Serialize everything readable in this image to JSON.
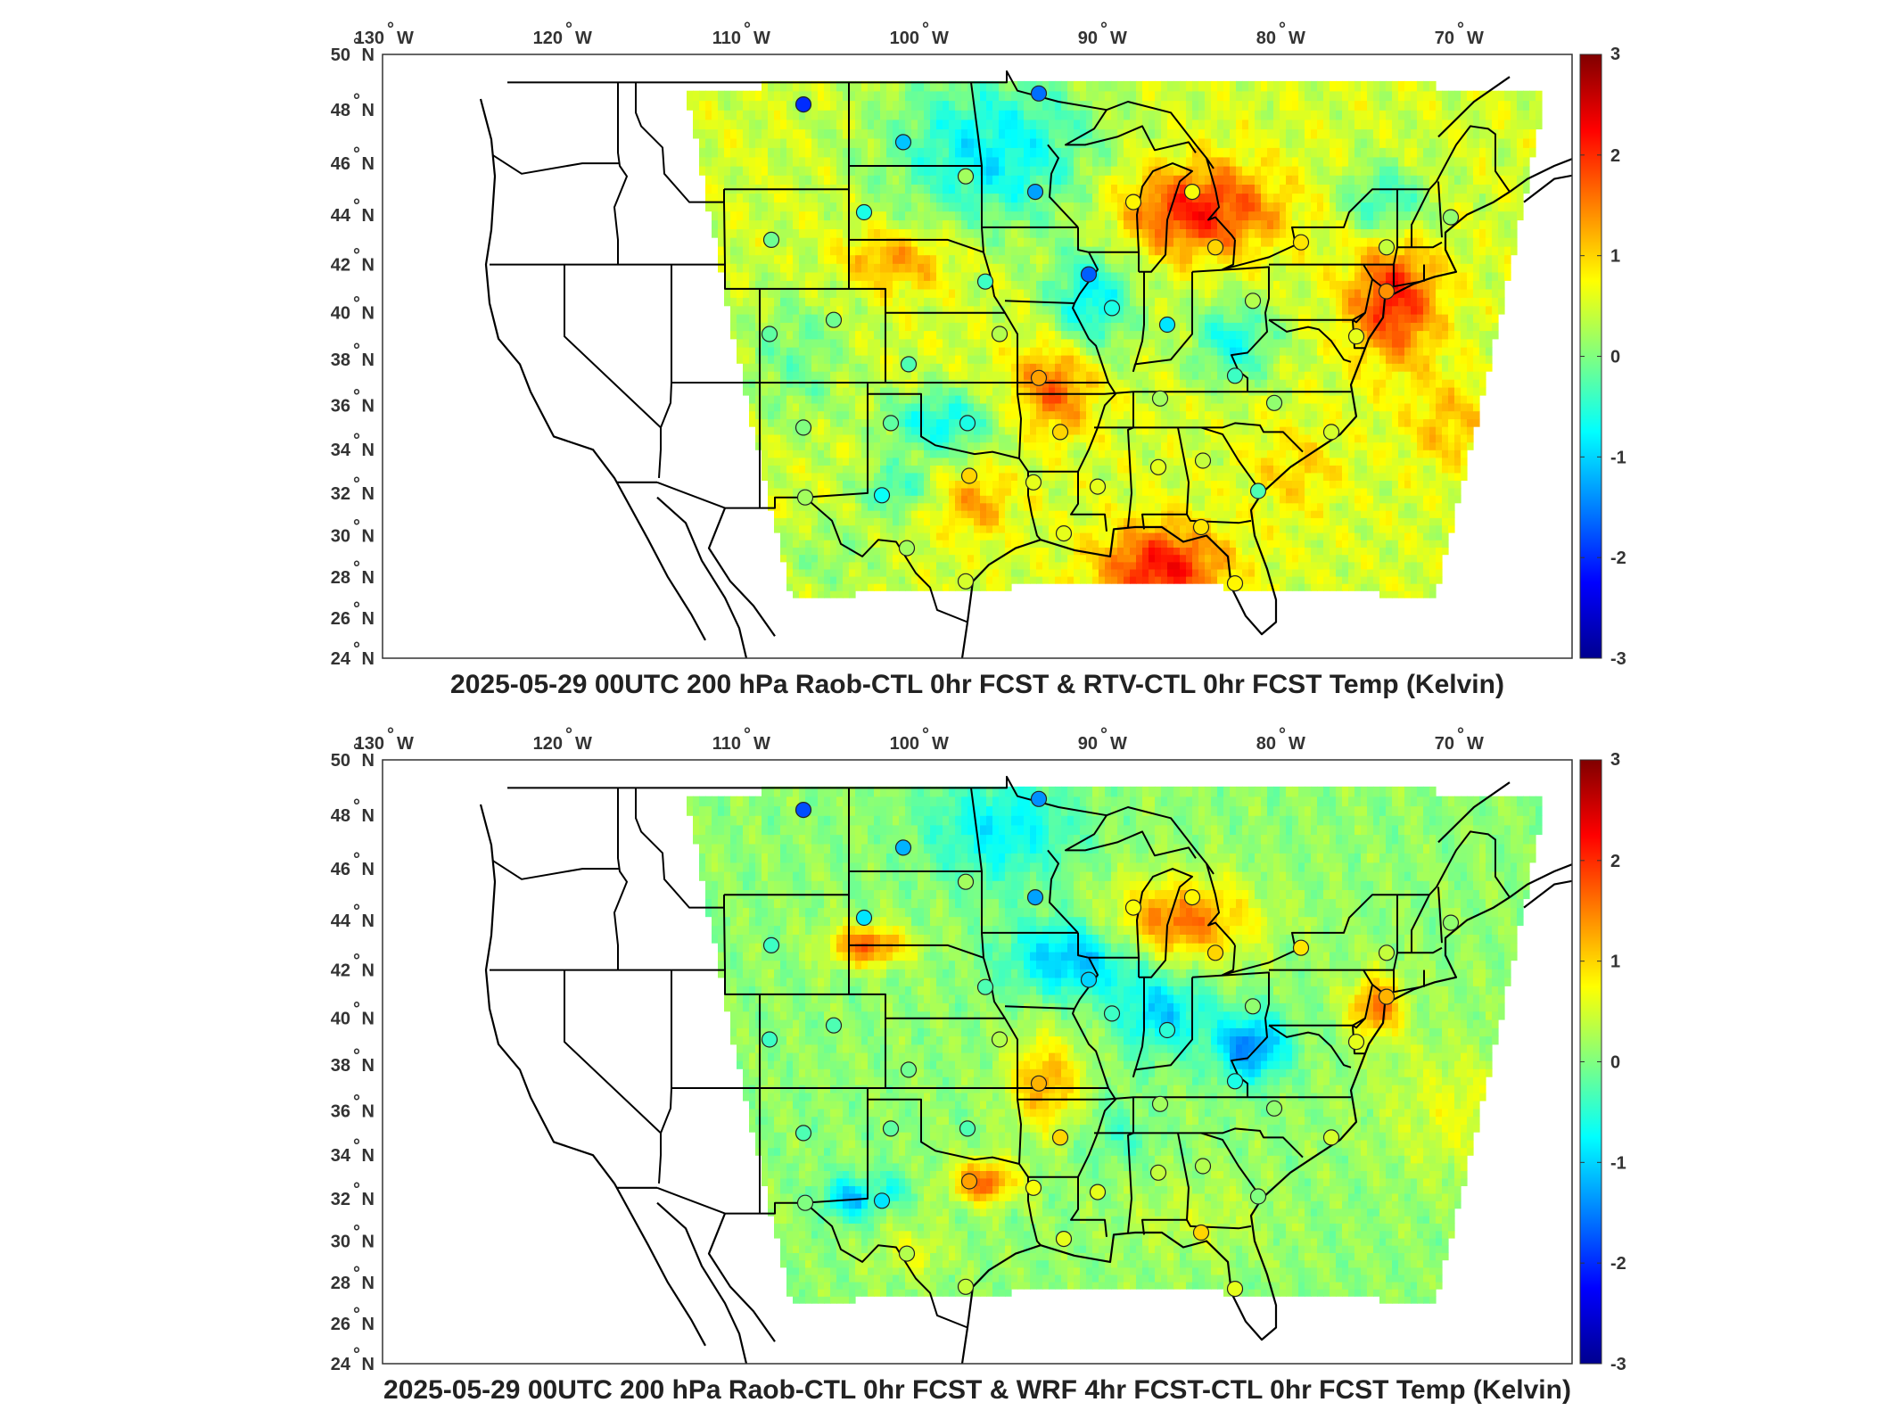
{
  "panels": [
    {
      "title": "2025-05-29 00UTC 200 hPa Raob-CTL 0hr FCST & RTV-CTL 0hr FCST Temp (Kelvin)",
      "field_variant": "rtv"
    },
    {
      "title": "2025-05-29 00UTC 200 hPa Raob-CTL 0hr FCST & WRF 4hr FCST-CTL 0hr FCST Temp (Kelvin)",
      "field_variant": "wrf"
    }
  ],
  "lon_labels": [
    {
      "lon": -130,
      "text": "130",
      "suffix": "W"
    },
    {
      "lon": -120,
      "text": "120",
      "suffix": "W"
    },
    {
      "lon": -110,
      "text": "110",
      "suffix": "W"
    },
    {
      "lon": -100,
      "text": "100",
      "suffix": "W"
    },
    {
      "lon": -90,
      "text": "90",
      "suffix": "W"
    },
    {
      "lon": -80,
      "text": "80",
      "suffix": "W"
    },
    {
      "lon": -70,
      "text": "70",
      "suffix": "W"
    }
  ],
  "lat_labels": [
    {
      "lat": 50,
      "text": "50",
      "suffix": "N"
    },
    {
      "lat": 48,
      "text": "48",
      "suffix": "N"
    },
    {
      "lat": 46,
      "text": "46",
      "suffix": "N"
    },
    {
      "lat": 44,
      "text": "44",
      "suffix": "N"
    },
    {
      "lat": 42,
      "text": "42",
      "suffix": "N"
    },
    {
      "lat": 40,
      "text": "40",
      "suffix": "N"
    },
    {
      "lat": 38,
      "text": "38",
      "suffix": "N"
    },
    {
      "lat": 36,
      "text": "36",
      "suffix": "N"
    },
    {
      "lat": 34,
      "text": "34",
      "suffix": "N"
    },
    {
      "lat": 32,
      "text": "32",
      "suffix": "N"
    },
    {
      "lat": 30,
      "text": "30",
      "suffix": "N"
    },
    {
      "lat": 28,
      "text": "28",
      "suffix": "N"
    },
    {
      "lat": 26,
      "text": "26",
      "suffix": "N"
    },
    {
      "lat": 24,
      "text": "24",
      "suffix": "N"
    }
  ],
  "colorbar": {
    "min": -3,
    "max": 3,
    "ticks": [
      "3",
      "2",
      "1",
      "0",
      "-1",
      "-2",
      "-3"
    ],
    "stops": [
      "#00008f",
      "#0000ff",
      "#0080ff",
      "#00ffff",
      "#80ff80",
      "#ffff00",
      "#ff8000",
      "#ff0000",
      "#800000"
    ]
  },
  "raob_stations": [
    {
      "lon": -106.6,
      "lat": 48.2,
      "v1": -2.0,
      "v2": -1.8
    },
    {
      "lon": -93.4,
      "lat": 48.6,
      "v1": -1.6,
      "v2": -1.4
    },
    {
      "lon": -101.0,
      "lat": 46.8,
      "v1": -1.1,
      "v2": -1.2
    },
    {
      "lon": -97.5,
      "lat": 45.5,
      "v1": 0.2,
      "v2": 0.2
    },
    {
      "lon": -93.6,
      "lat": 44.9,
      "v1": -1.3,
      "v2": -1.3
    },
    {
      "lon": -88.1,
      "lat": 44.5,
      "v1": 0.8,
      "v2": 0.7
    },
    {
      "lon": -84.8,
      "lat": 44.9,
      "v1": 0.7,
      "v2": 0.8
    },
    {
      "lon": -83.5,
      "lat": 42.7,
      "v1": 1.0,
      "v2": 1.0
    },
    {
      "lon": -78.7,
      "lat": 42.9,
      "v1": 0.9,
      "v2": 0.9
    },
    {
      "lon": -73.9,
      "lat": 42.7,
      "v1": 0.4,
      "v2": 0.4
    },
    {
      "lon": -70.3,
      "lat": 43.9,
      "v1": 0.1,
      "v2": 0.1
    },
    {
      "lon": -108.4,
      "lat": 43.0,
      "v1": -0.1,
      "v2": -0.4
    },
    {
      "lon": -103.2,
      "lat": 44.1,
      "v1": -0.6,
      "v2": -0.9
    },
    {
      "lon": -96.4,
      "lat": 41.3,
      "v1": -0.4,
      "v2": -0.3
    },
    {
      "lon": -90.6,
      "lat": 41.6,
      "v1": -1.7,
      "v2": -1.0
    },
    {
      "lon": -89.3,
      "lat": 40.2,
      "v1": -0.6,
      "v2": -0.4
    },
    {
      "lon": -86.2,
      "lat": 39.5,
      "v1": -0.9,
      "v2": -0.5
    },
    {
      "lon": -81.4,
      "lat": 40.5,
      "v1": 0.3,
      "v2": 0.1
    },
    {
      "lon": -75.6,
      "lat": 39.0,
      "v1": 0.6,
      "v2": 0.6
    },
    {
      "lon": -73.9,
      "lat": 40.9,
      "v1": 1.4,
      "v2": 1.2
    },
    {
      "lon": -108.5,
      "lat": 39.1,
      "v1": -0.2,
      "v2": -0.4
    },
    {
      "lon": -104.9,
      "lat": 39.7,
      "v1": -0.1,
      "v2": -0.3
    },
    {
      "lon": -100.7,
      "lat": 37.8,
      "v1": -0.3,
      "v2": -0.1
    },
    {
      "lon": -95.6,
      "lat": 39.1,
      "v1": 0.3,
      "v2": 0.3
    },
    {
      "lon": -93.4,
      "lat": 37.2,
      "v1": 1.3,
      "v2": 1.2
    },
    {
      "lon": -82.4,
      "lat": 37.3,
      "v1": -0.4,
      "v2": -0.6
    },
    {
      "lon": -86.6,
      "lat": 36.3,
      "v1": 0.2,
      "v2": 0.2
    },
    {
      "lon": -80.2,
      "lat": 36.1,
      "v1": 0.1,
      "v2": 0.1
    },
    {
      "lon": -106.6,
      "lat": 35.0,
      "v1": 0.0,
      "v2": -0.3
    },
    {
      "lon": -101.7,
      "lat": 35.2,
      "v1": -0.2,
      "v2": -0.2
    },
    {
      "lon": -97.4,
      "lat": 35.2,
      "v1": -0.6,
      "v2": -0.3
    },
    {
      "lon": -92.2,
      "lat": 34.8,
      "v1": 1.0,
      "v2": 1.0
    },
    {
      "lon": -77.0,
      "lat": 34.8,
      "v1": 0.5,
      "v2": 0.5
    },
    {
      "lon": -97.3,
      "lat": 32.8,
      "v1": 1.0,
      "v2": 1.3
    },
    {
      "lon": -93.7,
      "lat": 32.5,
      "v1": 0.6,
      "v2": 0.7
    },
    {
      "lon": -90.1,
      "lat": 32.3,
      "v1": 0.6,
      "v2": 0.6
    },
    {
      "lon": -86.7,
      "lat": 33.2,
      "v1": 0.6,
      "v2": 0.4
    },
    {
      "lon": -84.2,
      "lat": 33.5,
      "v1": 0.4,
      "v2": 0.3
    },
    {
      "lon": -81.1,
      "lat": 32.1,
      "v1": -0.3,
      "v2": 0.0
    },
    {
      "lon": -106.5,
      "lat": 31.8,
      "v1": 0.2,
      "v2": 0.0
    },
    {
      "lon": -102.2,
      "lat": 31.9,
      "v1": -0.7,
      "v2": -0.9
    },
    {
      "lon": -92.0,
      "lat": 30.1,
      "v1": 0.6,
      "v2": 0.6
    },
    {
      "lon": -84.3,
      "lat": 30.4,
      "v1": 0.9,
      "v2": 1.0
    },
    {
      "lon": -100.8,
      "lat": 29.4,
      "v1": 0.2,
      "v2": 0.3
    },
    {
      "lon": -97.5,
      "lat": 27.8,
      "v1": 0.5,
      "v2": 0.4
    },
    {
      "lon": -82.4,
      "lat": 27.7,
      "v1": 0.8,
      "v2": 0.6
    }
  ]
}
